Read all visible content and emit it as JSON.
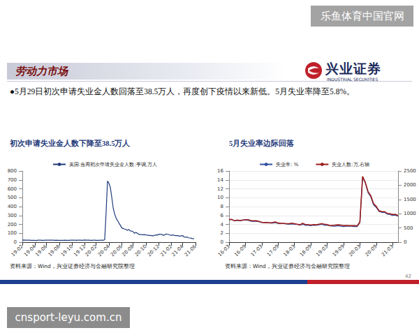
{
  "watermarks": [
    "乐鱼体育中国官网",
    "cnsport-leyu.com.cn"
  ],
  "header": {
    "title": "劳动力市场",
    "logo": "兴业证券",
    "logo_en": "INDUSTRIAL SECURITIES"
  },
  "bullet": "●5月29日初次申请失业金人数回落至38.5万人，再度创下疫情以来新低。5月失业率降至5.8%。",
  "page_number": "42",
  "chart_data": [
    {
      "type": "line",
      "title": "初次申请失业金人数下降至38.5万人",
      "source": "资料来源：Wind，兴业证券经济与金融研究院整理",
      "categories": [
        "19-02",
        null,
        null,
        null,
        null,
        null,
        null,
        null,
        null,
        "19-04",
        null,
        null,
        null,
        null,
        null,
        null,
        null,
        "19-06",
        null,
        null,
        null,
        null,
        null,
        null,
        null,
        null,
        "19-08",
        null,
        null,
        null,
        null,
        null,
        null,
        null,
        null,
        "19-10",
        null,
        null,
        null,
        null,
        null,
        null,
        null,
        null,
        "19-12",
        null,
        null,
        null,
        null,
        null,
        null,
        null,
        "20-02",
        null,
        null,
        null,
        null,
        null,
        null,
        null,
        null,
        "20-04",
        null,
        null,
        null,
        null,
        null,
        null,
        null,
        null,
        "20-06",
        null,
        null,
        null,
        null,
        null,
        null,
        null,
        "20-08",
        null,
        null,
        null,
        null,
        null,
        null,
        null,
        null,
        "20-10",
        null,
        null,
        null,
        null,
        null,
        null,
        null,
        null,
        "20-12",
        null,
        null,
        null,
        null,
        null,
        null,
        null,
        null,
        "21-02",
        null,
        null,
        null,
        null,
        null,
        null,
        null,
        "21-04",
        null,
        null,
        null,
        null,
        null,
        null,
        null,
        null,
        "21-06"
      ],
      "series": [
        {
          "name": "美国:当周初次申请失业金人数:季调,万人",
          "color": "#1f3a7a",
          "values": [
            23,
            24,
            22,
            22,
            22,
            22,
            21,
            21,
            20,
            20,
            19,
            23,
            23,
            22,
            21,
            21,
            22,
            22,
            22,
            22,
            22,
            22,
            22,
            21,
            22,
            21,
            21,
            21,
            21,
            21,
            22,
            21,
            21,
            21,
            22,
            22,
            22,
            22,
            21,
            22,
            23,
            22,
            21,
            23,
            25,
            23,
            22,
            22,
            21,
            21,
            22,
            22,
            21,
            21,
            21,
            22,
            22,
            21,
            28,
            331,
            687,
            661,
            615,
            504,
            384,
            317,
            272,
            245,
            215,
            191,
            162,
            154,
            147,
            143,
            133,
            144,
            127,
            125,
            118,
            100,
            110,
            101,
            88,
            87,
            85,
            84,
            85,
            81,
            80,
            75,
            75,
            73,
            71,
            75,
            83,
            78,
            89,
            88,
            90,
            78,
            79,
            91,
            90,
            86,
            80,
            78,
            83,
            75,
            74,
            74,
            71,
            68,
            72,
            74,
            57,
            56,
            59,
            49,
            47,
            44,
            40,
            38.5,
            null
          ]
        }
      ],
      "ylim": [
        0,
        800
      ],
      "yticks": [
        0,
        100,
        200,
        300,
        400,
        500,
        600,
        700,
        800
      ],
      "grid": false,
      "legend": "top",
      "marker": "none",
      "line_style": "solid"
    },
    {
      "type": "line",
      "title": "5月失业率边际回落",
      "source": "资料来源：Wind，兴业证券经济与金融研究院整理",
      "categories": [
        "16-03",
        null,
        null,
        null,
        null,
        null,
        "16-09",
        null,
        null,
        null,
        null,
        null,
        "17-03",
        null,
        null,
        null,
        null,
        null,
        "17-09",
        null,
        null,
        null,
        null,
        null,
        "18-03",
        null,
        null,
        null,
        null,
        null,
        "18-09",
        null,
        null,
        null,
        null,
        null,
        "19-03",
        null,
        null,
        null,
        null,
        null,
        "19-09",
        null,
        null,
        null,
        null,
        null,
        "20-03",
        null,
        null,
        null,
        null,
        null,
        "20-09",
        null,
        null,
        null,
        null,
        null,
        "21-03",
        null,
        null
      ],
      "series": [
        {
          "name": "失业率: %",
          "color": "#2f4fa0",
          "values": [
            5.0,
            5.1,
            4.8,
            4.9,
            4.8,
            4.9,
            5.0,
            4.9,
            4.7,
            4.7,
            4.7,
            4.6,
            4.4,
            4.4,
            4.4,
            4.3,
            4.3,
            4.4,
            4.2,
            4.2,
            4.2,
            4.1,
            4.0,
            4.1,
            4.0,
            4.0,
            3.8,
            4.0,
            3.8,
            3.8,
            3.7,
            3.8,
            3.8,
            3.9,
            4.0,
            3.8,
            3.8,
            3.7,
            3.6,
            3.6,
            3.7,
            3.6,
            3.5,
            3.6,
            3.6,
            3.6,
            3.5,
            3.5,
            4.4,
            14.7,
            13.3,
            11.1,
            10.2,
            8.4,
            7.8,
            6.9,
            6.7,
            6.7,
            6.3,
            6.2,
            6.0,
            6.1,
            5.8
          ]
        },
        {
          "name": "失业人数:万,右轴",
          "color": "#9b1c1c",
          "axis": "y2",
          "values": [
            796,
            800,
            750,
            780,
            760,
            780,
            790,
            790,
            760,
            750,
            750,
            730,
            700,
            690,
            690,
            680,
            690,
            710,
            670,
            660,
            660,
            650,
            650,
            670,
            650,
            630,
            610,
            660,
            620,
            620,
            600,
            620,
            610,
            630,
            650,
            630,
            620,
            580,
            590,
            600,
            610,
            600,
            580,
            590,
            580,
            580,
            580,
            570,
            710,
            2308,
            2098,
            1775,
            1633,
            1355,
            1258,
            1106,
            1074,
            1074,
            1013,
            1001,
            971,
            982,
            932
          ]
        }
      ],
      "ylim": [
        0,
        16
      ],
      "yticks": [
        0,
        2,
        4,
        6,
        8,
        10,
        12,
        14,
        16
      ],
      "y2lim": [
        0,
        2500
      ],
      "y2ticks": [
        0,
        500,
        1000,
        1500,
        2000,
        2500
      ],
      "grid": true,
      "legend": "top",
      "marker": "none",
      "line_style": "solid"
    }
  ]
}
